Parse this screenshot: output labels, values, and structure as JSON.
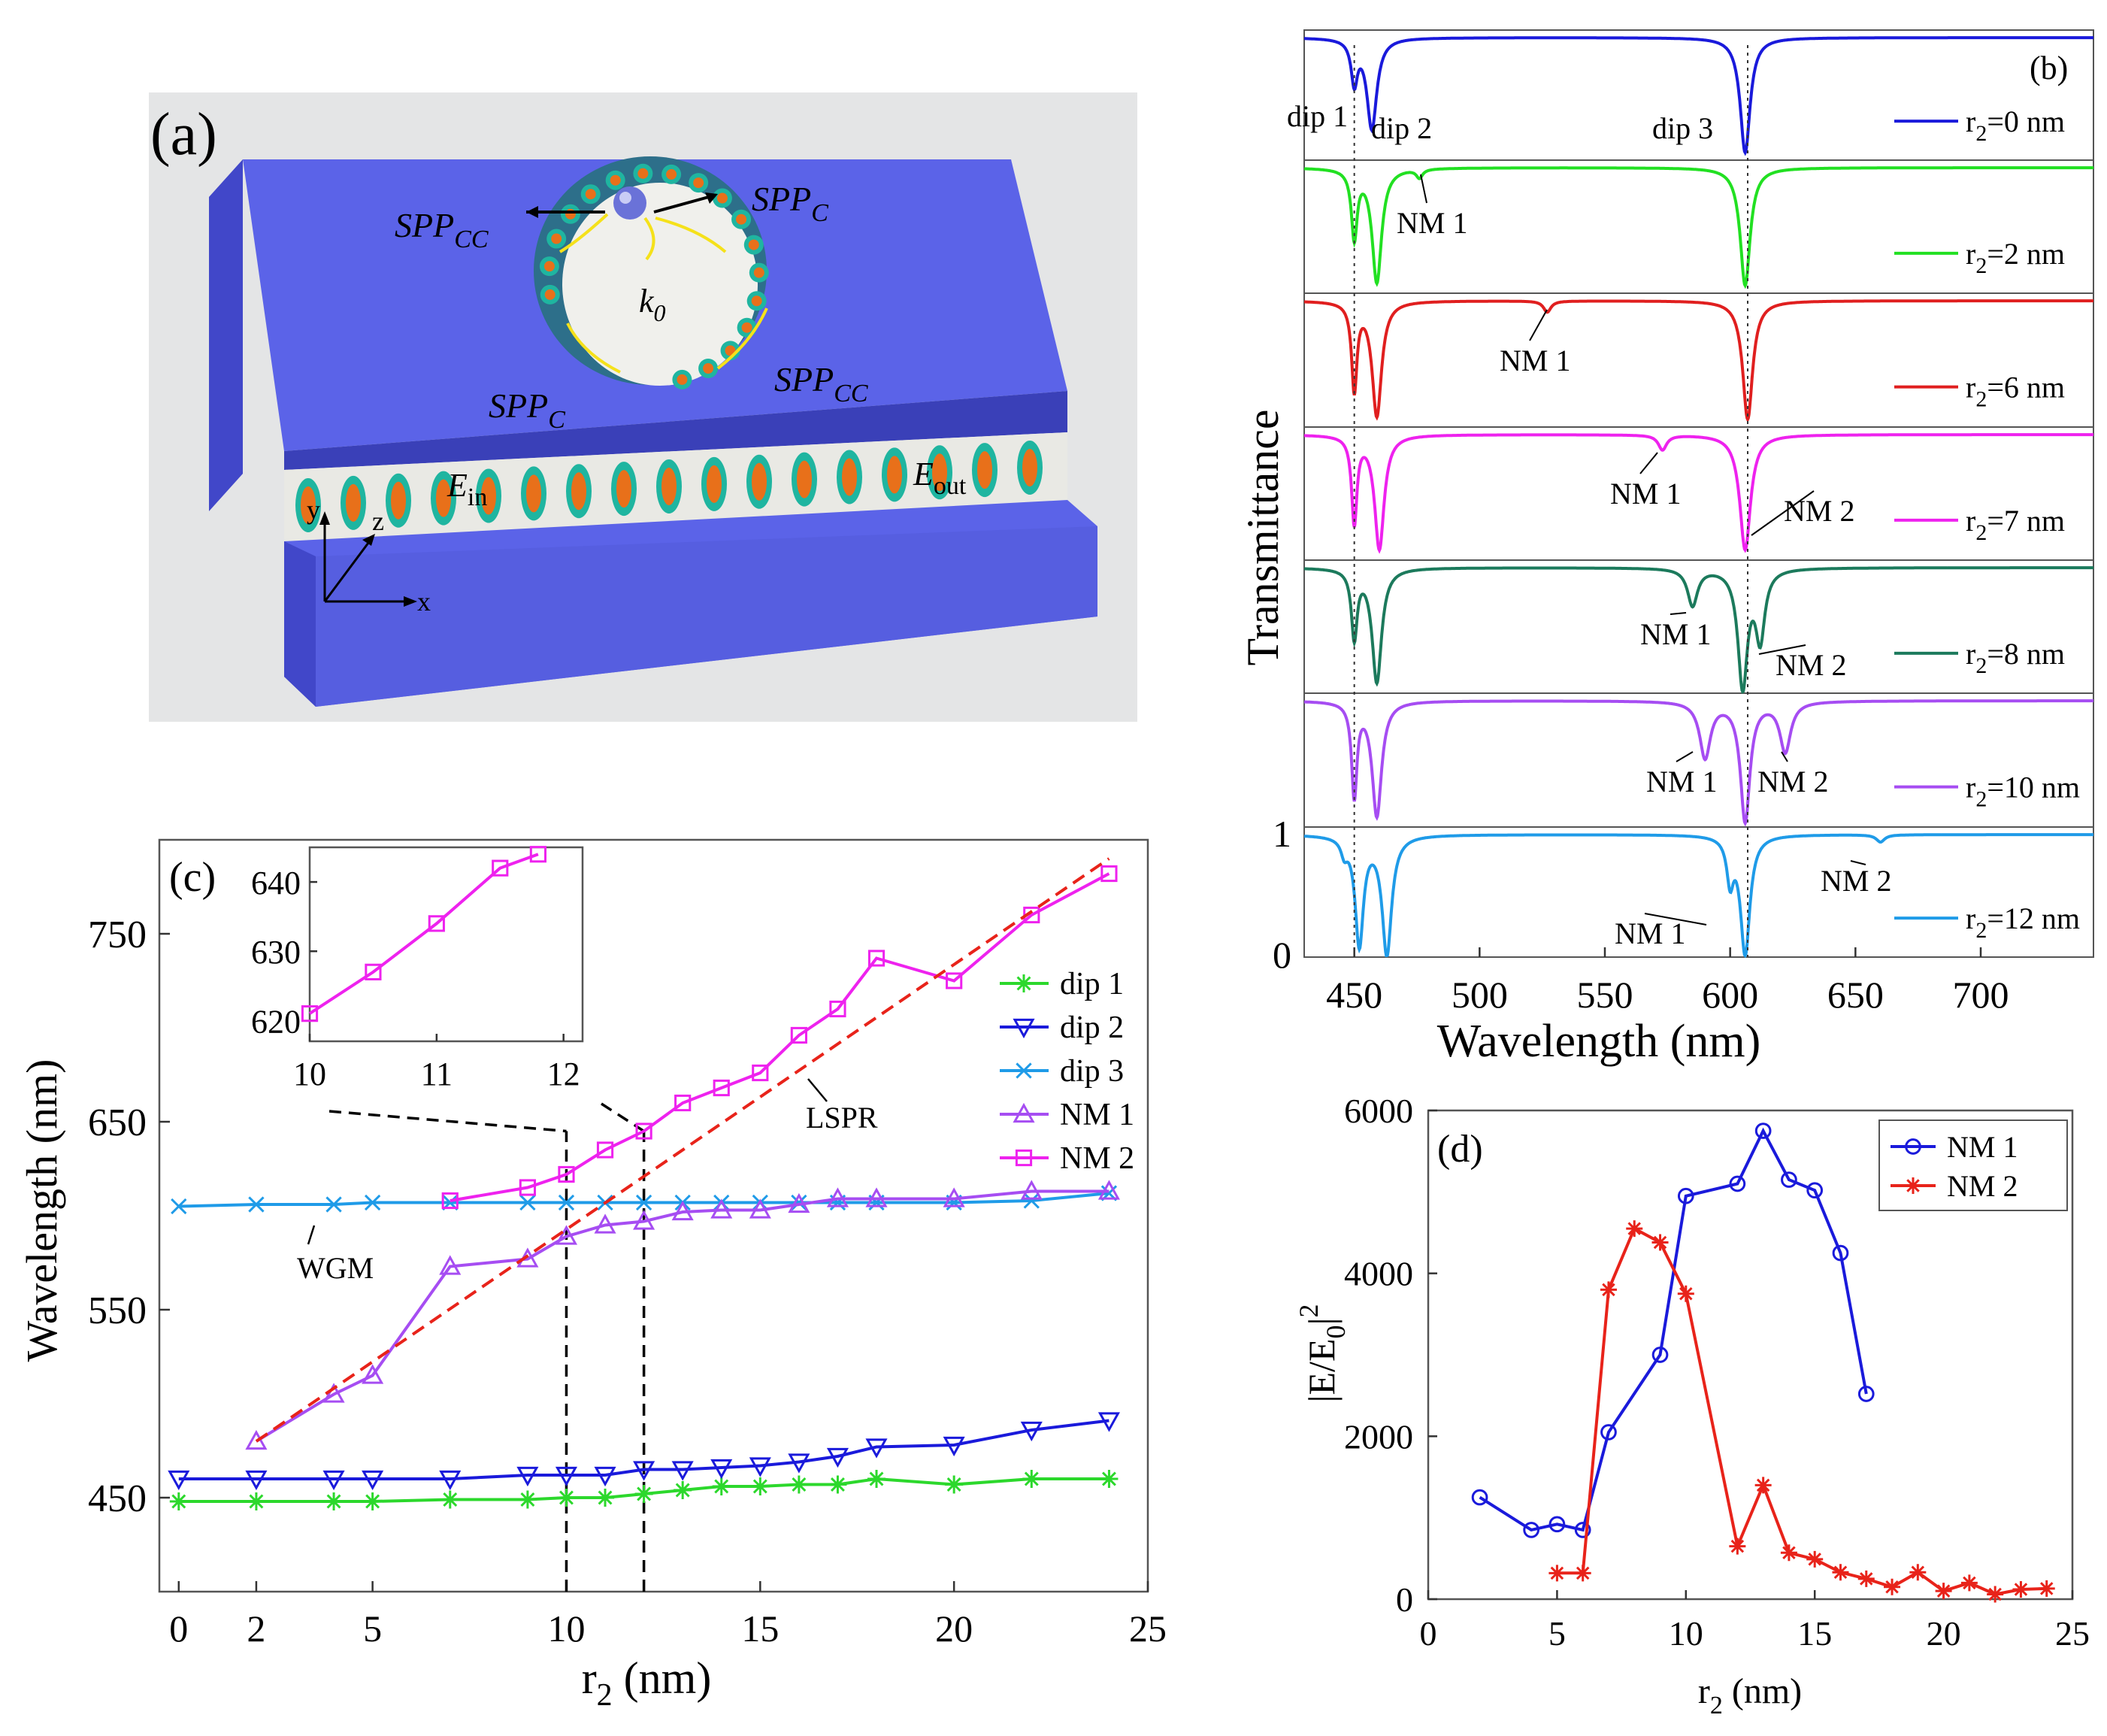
{
  "panels": {
    "a": {
      "label": "(a)",
      "spp_cc_left": "SPP",
      "spp_cc_left_sub": "CC",
      "spp_c_right": "SPP",
      "spp_c_right_sub": "C",
      "k0": "k",
      "k0_sub": "0",
      "spp_c_bottom": "SPP",
      "spp_c_bottom_sub": "C",
      "spp_cc_bottom": "SPP",
      "spp_cc_bottom_sub": "CC",
      "e_in": "E",
      "e_in_sub": "in",
      "e_out": "E",
      "e_out_sub": "out",
      "axis_y": "y",
      "axis_z": "z",
      "axis_x": "x",
      "colors": {
        "metal": "#5b63e8",
        "metal_side": "#4147c9",
        "field_warm": "#e8701a",
        "field_cool": "#1fb5a0",
        "gap": "#e9e9e4",
        "arrow": "#f5e11a"
      }
    },
    "b": {
      "label": "(b)",
      "ylabel": "Transmittance",
      "xlabel": "Wavelength (nm)",
      "xticks": [
        "450",
        "500",
        "550",
        "600",
        "650",
        "700"
      ],
      "yticks": [
        "0",
        "1"
      ],
      "dips": [
        "dip 1",
        "dip 2",
        "dip 3"
      ],
      "traces": [
        {
          "legend": "r",
          "sub": "2",
          "rest": "=0 nm",
          "color": "#1a1adb",
          "annotations": []
        },
        {
          "legend": "r",
          "sub": "2",
          "rest": "=2 nm",
          "color": "#22e022",
          "annotations": [
            "NM 1"
          ]
        },
        {
          "legend": "r",
          "sub": "2",
          "rest": "=6 nm",
          "color": "#e01f1f",
          "annotations": [
            "NM 1"
          ]
        },
        {
          "legend": "r",
          "sub": "2",
          "rest": "=7 nm",
          "color": "#ee22ee",
          "annotations": [
            "NM 1",
            "NM 2"
          ]
        },
        {
          "legend": "r",
          "sub": "2",
          "rest": "=8 nm",
          "color": "#1c7a5c",
          "annotations": [
            "NM 1",
            "NM 2"
          ]
        },
        {
          "legend": "r",
          "sub": "2",
          "rest": "=10 nm",
          "color": "#a64df2",
          "annotations": [
            "NM 1",
            "NM 2"
          ]
        },
        {
          "legend": "r",
          "sub": "2",
          "rest": "=12 nm",
          "color": "#1f9be8",
          "annotations": [
            "NM 1",
            "NM 2"
          ]
        }
      ]
    },
    "c": {
      "label": "(c)",
      "ylabel": "Wavelength (nm)",
      "xlabel_main": "r",
      "xlabel_sub": "2",
      "xlabel_rest": " (nm)",
      "xticks_main": [
        "0",
        "2",
        "5",
        "10",
        "15",
        "20",
        "25"
      ],
      "yticks_main": [
        "450",
        "550",
        "650",
        "750"
      ],
      "inset_xticks": [
        "10",
        "11",
        "12"
      ],
      "inset_yticks": [
        "620",
        "630",
        "640"
      ],
      "annotations": {
        "wgm": "WGM",
        "lspr": "LSPR"
      }
    },
    "d": {
      "label": "(d)",
      "ylabel": "|E/E",
      "ylabel_sub": "0",
      "ylabel_end": "|",
      "ylabel_sup": "2",
      "xlabel_main": "r",
      "xlabel_sub": "2",
      "xlabel_rest": " (nm)",
      "xticks": [
        "0",
        "5",
        "10",
        "15",
        "20",
        "25"
      ],
      "yticks": [
        "0",
        "2000",
        "4000",
        "6000"
      ]
    }
  },
  "chart_data": [
    {
      "id": "b",
      "type": "line",
      "title": "(b)",
      "xlabel": "Wavelength (nm)",
      "ylabel": "Transmittance",
      "xlim": [
        430,
        745
      ],
      "ylim": [
        0,
        1
      ],
      "series": [
        {
          "name": "r2=0 nm",
          "color": "#1a1adb",
          "dips": [
            {
              "x": 450,
              "depth": 0.35,
              "w": 1.5
            },
            {
              "x": 457,
              "depth": 0.75,
              "w": 2.4
            },
            {
              "x": 606,
              "depth": 0.95,
              "w": 2.4
            }
          ]
        },
        {
          "name": "r2=2 nm",
          "color": "#22e022",
          "dips": [
            {
              "x": 450,
              "depth": 0.55,
              "w": 1.4
            },
            {
              "x": 459,
              "depth": 0.92,
              "w": 2.3
            },
            {
              "x": 476,
              "depth": 0.07,
              "w": 1.5
            },
            {
              "x": 606,
              "depth": 0.95,
              "w": 2.4
            }
          ]
        },
        {
          "name": "r2=6 nm",
          "color": "#e01f1f",
          "dips": [
            {
              "x": 450,
              "depth": 0.7,
              "w": 1.3
            },
            {
              "x": 459,
              "depth": 0.92,
              "w": 2.3
            },
            {
              "x": 527,
              "depth": 0.09,
              "w": 1.8
            },
            {
              "x": 607,
              "depth": 0.95,
              "w": 2.4
            }
          ]
        },
        {
          "name": "r2=7 nm",
          "color": "#ee22ee",
          "dips": [
            {
              "x": 450,
              "depth": 0.7,
              "w": 1.3
            },
            {
              "x": 460,
              "depth": 0.92,
              "w": 2.3
            },
            {
              "x": 573,
              "depth": 0.12,
              "w": 2.0
            },
            {
              "x": 606,
              "depth": 0.93,
              "w": 2.6
            }
          ]
        },
        {
          "name": "r2=8 nm",
          "color": "#1c7a5c",
          "dips": [
            {
              "x": 450,
              "depth": 0.55,
              "w": 1.4
            },
            {
              "x": 459,
              "depth": 0.92,
              "w": 2.3
            },
            {
              "x": 585,
              "depth": 0.3,
              "w": 2.4
            },
            {
              "x": 605,
              "depth": 0.95,
              "w": 2.3
            },
            {
              "x": 612,
              "depth": 0.55,
              "w": 2.2
            }
          ]
        },
        {
          "name": "r2=10 nm",
          "color": "#a64df2",
          "dips": [
            {
              "x": 450,
              "depth": 0.75,
              "w": 1.3
            },
            {
              "x": 459,
              "depth": 0.92,
              "w": 2.3
            },
            {
              "x": 590,
              "depth": 0.45,
              "w": 2.6
            },
            {
              "x": 606,
              "depth": 0.96,
              "w": 2.3
            },
            {
              "x": 622,
              "depth": 0.4,
              "w": 2.6
            }
          ]
        },
        {
          "name": "r2=12 nm",
          "color": "#1f9be8",
          "dips": [
            {
              "x": 446,
              "depth": 0.12,
              "w": 1.5
            },
            {
              "x": 452,
              "depth": 0.9,
              "w": 2.0
            },
            {
              "x": 463,
              "depth": 0.98,
              "w": 2.3
            },
            {
              "x": 600,
              "depth": 0.35,
              "w": 1.6
            },
            {
              "x": 606,
              "depth": 0.98,
              "w": 2.3
            },
            {
              "x": 660,
              "depth": 0.06,
              "w": 2.0
            }
          ]
        }
      ]
    },
    {
      "id": "c",
      "type": "line",
      "xlabel": "r2 (nm)",
      "ylabel": "Wavelength (nm)",
      "xlim": [
        -0.5,
        25
      ],
      "ylim": [
        400,
        800
      ],
      "series": [
        {
          "name": "dip 1",
          "color": "#2cd82c",
          "marker": "star",
          "x": [
            0,
            2,
            4,
            5,
            7,
            9,
            10,
            11,
            12,
            13,
            14,
            15,
            16,
            17,
            18,
            20,
            22,
            24
          ],
          "y": [
            448,
            448,
            448,
            448,
            449,
            449,
            450,
            450,
            452,
            454,
            456,
            456,
            457,
            457,
            460,
            457,
            460,
            460
          ]
        },
        {
          "name": "dip 2",
          "color": "#1a1adb",
          "marker": "triangle-down",
          "x": [
            0,
            2,
            4,
            5,
            7,
            9,
            10,
            11,
            12,
            13,
            14,
            15,
            16,
            17,
            18,
            20,
            22,
            24
          ],
          "y": [
            460,
            460,
            460,
            460,
            460,
            462,
            462,
            462,
            465,
            465,
            466,
            467,
            469,
            472,
            477,
            478,
            486,
            491
          ]
        },
        {
          "name": "dip 3",
          "color": "#1f9be8",
          "marker": "x",
          "x": [
            0,
            2,
            4,
            5,
            7,
            9,
            10,
            11,
            12,
            13,
            14,
            15,
            16,
            17,
            18,
            20,
            22,
            24
          ],
          "y": [
            605,
            606,
            606,
            607,
            607,
            607,
            607,
            607,
            607,
            607,
            607,
            607,
            607,
            607,
            607,
            607,
            608,
            612
          ]
        },
        {
          "name": "NM 1",
          "color": "#a64df2",
          "marker": "triangle-up",
          "x": [
            2,
            4,
            5,
            7,
            9,
            10,
            11,
            12,
            13,
            14,
            15,
            16,
            17,
            18,
            20,
            22,
            24
          ],
          "y": [
            480,
            505,
            515,
            573,
            577,
            589,
            595,
            597,
            602,
            603,
            603,
            606,
            609,
            609,
            609,
            613,
            613
          ]
        },
        {
          "name": "NM 2",
          "color": "#ee22ee",
          "marker": "square",
          "x": [
            7,
            9,
            10,
            11,
            12,
            13,
            14,
            15,
            16,
            17,
            18,
            20,
            22,
            24
          ],
          "y": [
            608,
            615,
            622,
            635,
            645,
            660,
            668,
            676,
            696,
            710,
            737,
            725,
            760,
            782
          ]
        },
        {
          "name": "LSPR",
          "color": "#e8231a",
          "style": "dashed",
          "x": [
            2,
            24
          ],
          "y": [
            480,
            790
          ]
        }
      ],
      "guides": [
        {
          "x": 10,
          "ymax": 645
        },
        {
          "x": 12,
          "ymax": 645
        }
      ],
      "inset": {
        "xlim": [
          10,
          12.15
        ],
        "ylim": [
          617,
          645
        ],
        "x": [
          10,
          10.5,
          11,
          11.5,
          11.8
        ],
        "y": [
          621,
          627,
          634,
          642,
          644
        ]
      }
    },
    {
      "id": "d",
      "type": "line",
      "xlabel": "r2 (nm)",
      "ylabel": "|E/E0|^2",
      "xlim": [
        0,
        25
      ],
      "ylim": [
        0,
        6000
      ],
      "series": [
        {
          "name": "NM 1",
          "color": "#1a1adb",
          "marker": "circle",
          "x": [
            2,
            4,
            5,
            6,
            7,
            9,
            10,
            12,
            13,
            14,
            15,
            16,
            17
          ],
          "y": [
            1250,
            850,
            920,
            850,
            2050,
            3000,
            4950,
            5100,
            5750,
            5150,
            5020,
            4250,
            2520
          ]
        },
        {
          "name": "NM 2",
          "color": "#e8231a",
          "marker": "star",
          "x": [
            5,
            6,
            7,
            8,
            9,
            10,
            12,
            13,
            14,
            15,
            16,
            17,
            18,
            19,
            20,
            21,
            22,
            23,
            24
          ],
          "y": [
            320,
            320,
            3800,
            4550,
            4380,
            3750,
            650,
            1400,
            570,
            490,
            330,
            250,
            150,
            330,
            100,
            200,
            60,
            120,
            130
          ]
        }
      ]
    }
  ]
}
